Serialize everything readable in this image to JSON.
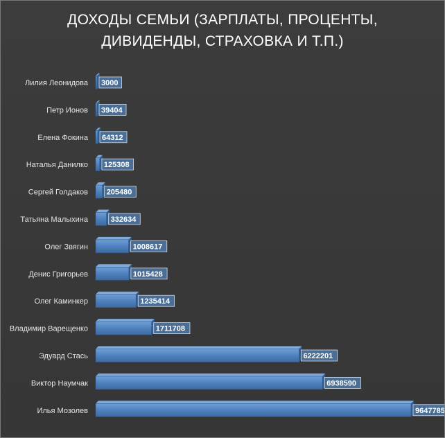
{
  "chart_data": {
    "type": "bar",
    "orientation": "horizontal",
    "title_lines": [
      "ДОХОДЫ СЕМЬИ (ЗАРПЛАТЫ, ПРОЦЕНТЫ,",
      "ДИВИДЕНДЫ,  СТРАХОВКА И Т.П.)"
    ],
    "categories": [
      "Лилия  Леонидова",
      "Петр Ионов",
      "Елена Фокина",
      "Наталья Данилко",
      "Сергей Голдаков",
      "Татьяна Малыхина",
      "Олег Звягин",
      "Денис Григорьев",
      "Олег Каминкер",
      "Владимир Варещенко",
      "Эдуард Стась",
      "Виктор Наумчак",
      "Илья Мозолев"
    ],
    "values": [
      3000,
      39404,
      64312,
      125308,
      205480,
      332634,
      1008617,
      1015428,
      1235414,
      1711708,
      6222201,
      6938590,
      9647785
    ],
    "data_labels": true,
    "legend": "none",
    "grid": false,
    "bar_color": "#4f81bd",
    "label_box_color": "#4a6e96"
  }
}
